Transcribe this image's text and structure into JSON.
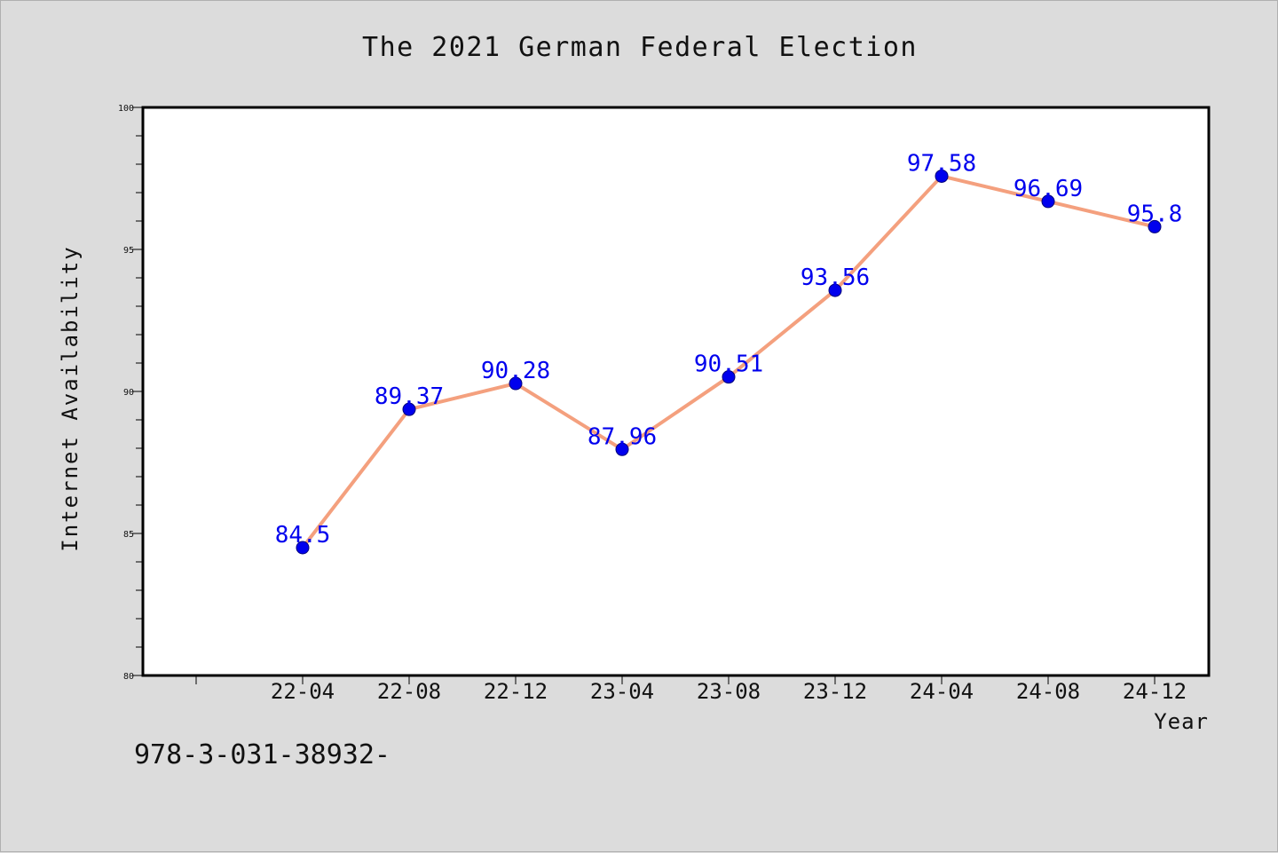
{
  "footer": {
    "text": "978-3-031-38932-"
  },
  "colors": {
    "background": "#dcdcdc",
    "plot_bg": "#ffffff",
    "line": "#f4a07e",
    "marker": "#0000ee",
    "marker_edge": "#00007a",
    "data_label": "#0000ee",
    "axis": "#000000"
  },
  "chart_data": {
    "type": "line",
    "title": "The 2021 German Federal Election",
    "xlabel": "Year",
    "ylabel": "Internet Availability",
    "categories": [
      "22-04",
      "22-08",
      "22-12",
      "23-04",
      "23-08",
      "23-12",
      "24-04",
      "24-08",
      "24-12"
    ],
    "series": [
      {
        "values": [
          84.5,
          89.37,
          90.28,
          87.96,
          90.51,
          93.56,
          97.58,
          96.69,
          95.8
        ]
      }
    ],
    "data_labels": [
      "84.5",
      "89.37",
      "90.28",
      "87.96",
      "90.51",
      "93.56",
      "97.58",
      "96.69",
      "95.8"
    ],
    "ylim": [
      80,
      100
    ],
    "yticks": [
      "80",
      "85",
      "90",
      "95",
      "100"
    ],
    "y_minor_step": 1,
    "grid": false,
    "legend": "none"
  }
}
